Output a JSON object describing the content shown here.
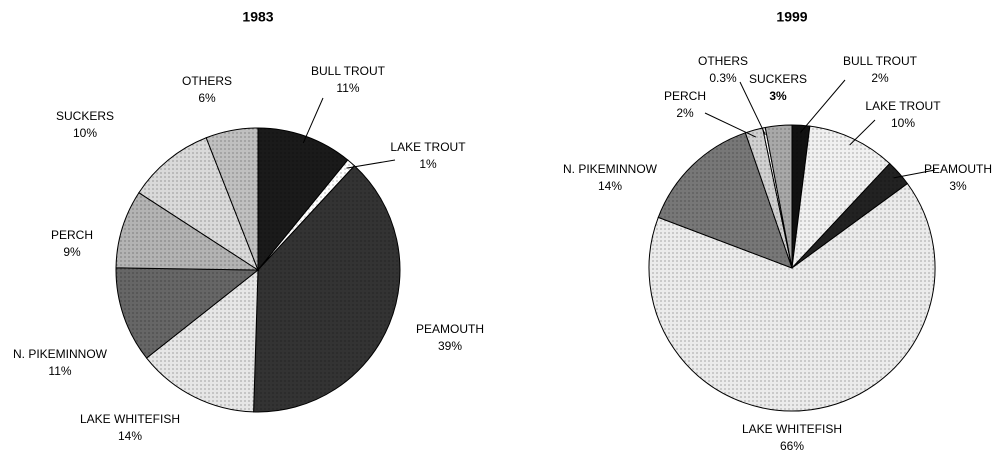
{
  "chart_data": [
    {
      "type": "pie",
      "title": "1983",
      "categories": [
        "BULL TROUT",
        "LAKE TROUT",
        "PEAMOUTH",
        "LAKE WHITEFISH",
        "N. PIKEMINNOW",
        "PERCH",
        "SUCKERS",
        "OTHERS"
      ],
      "values": [
        11,
        1,
        39,
        14,
        11,
        9,
        10,
        6
      ],
      "value_labels": [
        "11%",
        "1%",
        "39%",
        "14%",
        "11%",
        "9%",
        "10%",
        "6%"
      ],
      "colors": [
        "#1a1a1a",
        "#ffffff",
        "#333333",
        "#e6e6e6",
        "#666666",
        "#b3b3b3",
        "#d9d9d9",
        "#bfbfbf"
      ]
    },
    {
      "type": "pie",
      "title": "1999",
      "categories": [
        "BULL TROUT",
        "LAKE TROUT",
        "PEAMOUTH",
        "LAKE WHITEFISH",
        "N. PIKEMINNOW",
        "PERCH",
        "OTHERS",
        "SUCKERS"
      ],
      "values": [
        2,
        10,
        3,
        66,
        14,
        2,
        0.3,
        3
      ],
      "value_labels": [
        "2%",
        "10%",
        "3%",
        "66%",
        "14%",
        "2%",
        "0.3%",
        "3%"
      ],
      "colors": [
        "#111111",
        "#f0f0f0",
        "#222222",
        "#ebebeb",
        "#777777",
        "#d0d0d0",
        "#ffffff",
        "#a8a8a8"
      ]
    }
  ]
}
